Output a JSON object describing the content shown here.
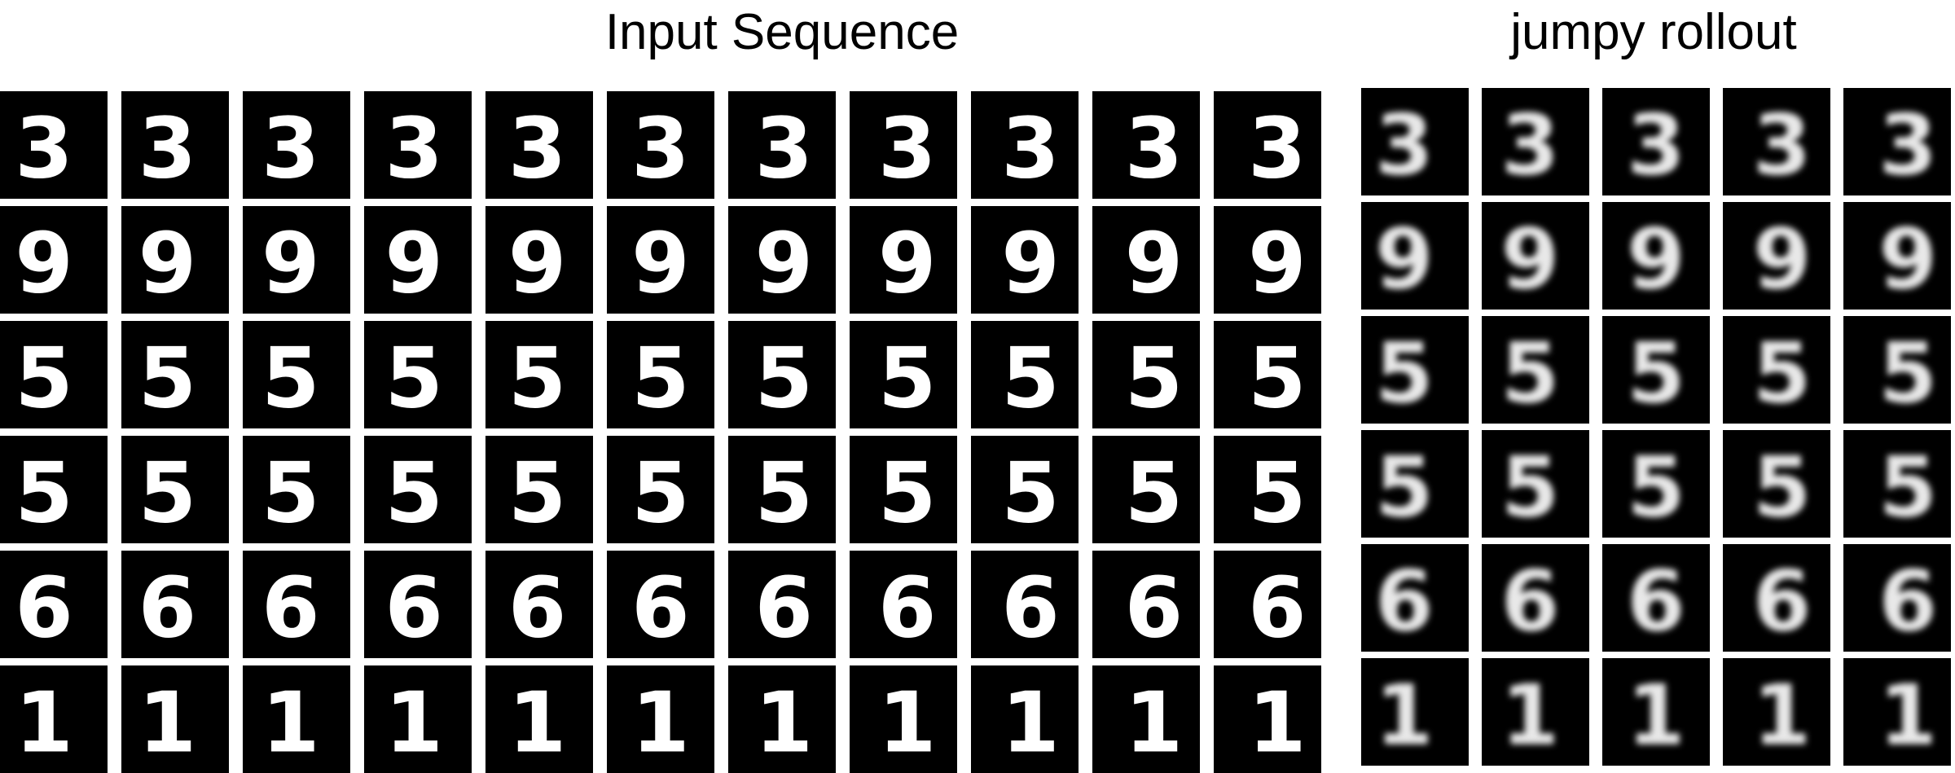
{
  "figure": {
    "input_panel": {
      "title": "Input Sequence",
      "columns": 11,
      "rows": [
        {
          "digit": "3"
        },
        {
          "digit": "9"
        },
        {
          "digit": "5"
        },
        {
          "digit": "5"
        },
        {
          "digit": "6"
        },
        {
          "digit": "1"
        }
      ]
    },
    "rollout_panel": {
      "title": "jumpy rollout",
      "columns": 5,
      "rows": [
        {
          "digit": "3"
        },
        {
          "digit": "9"
        },
        {
          "digit": "5"
        },
        {
          "digit": "5"
        },
        {
          "digit": "6"
        },
        {
          "digit": "1"
        }
      ]
    }
  }
}
